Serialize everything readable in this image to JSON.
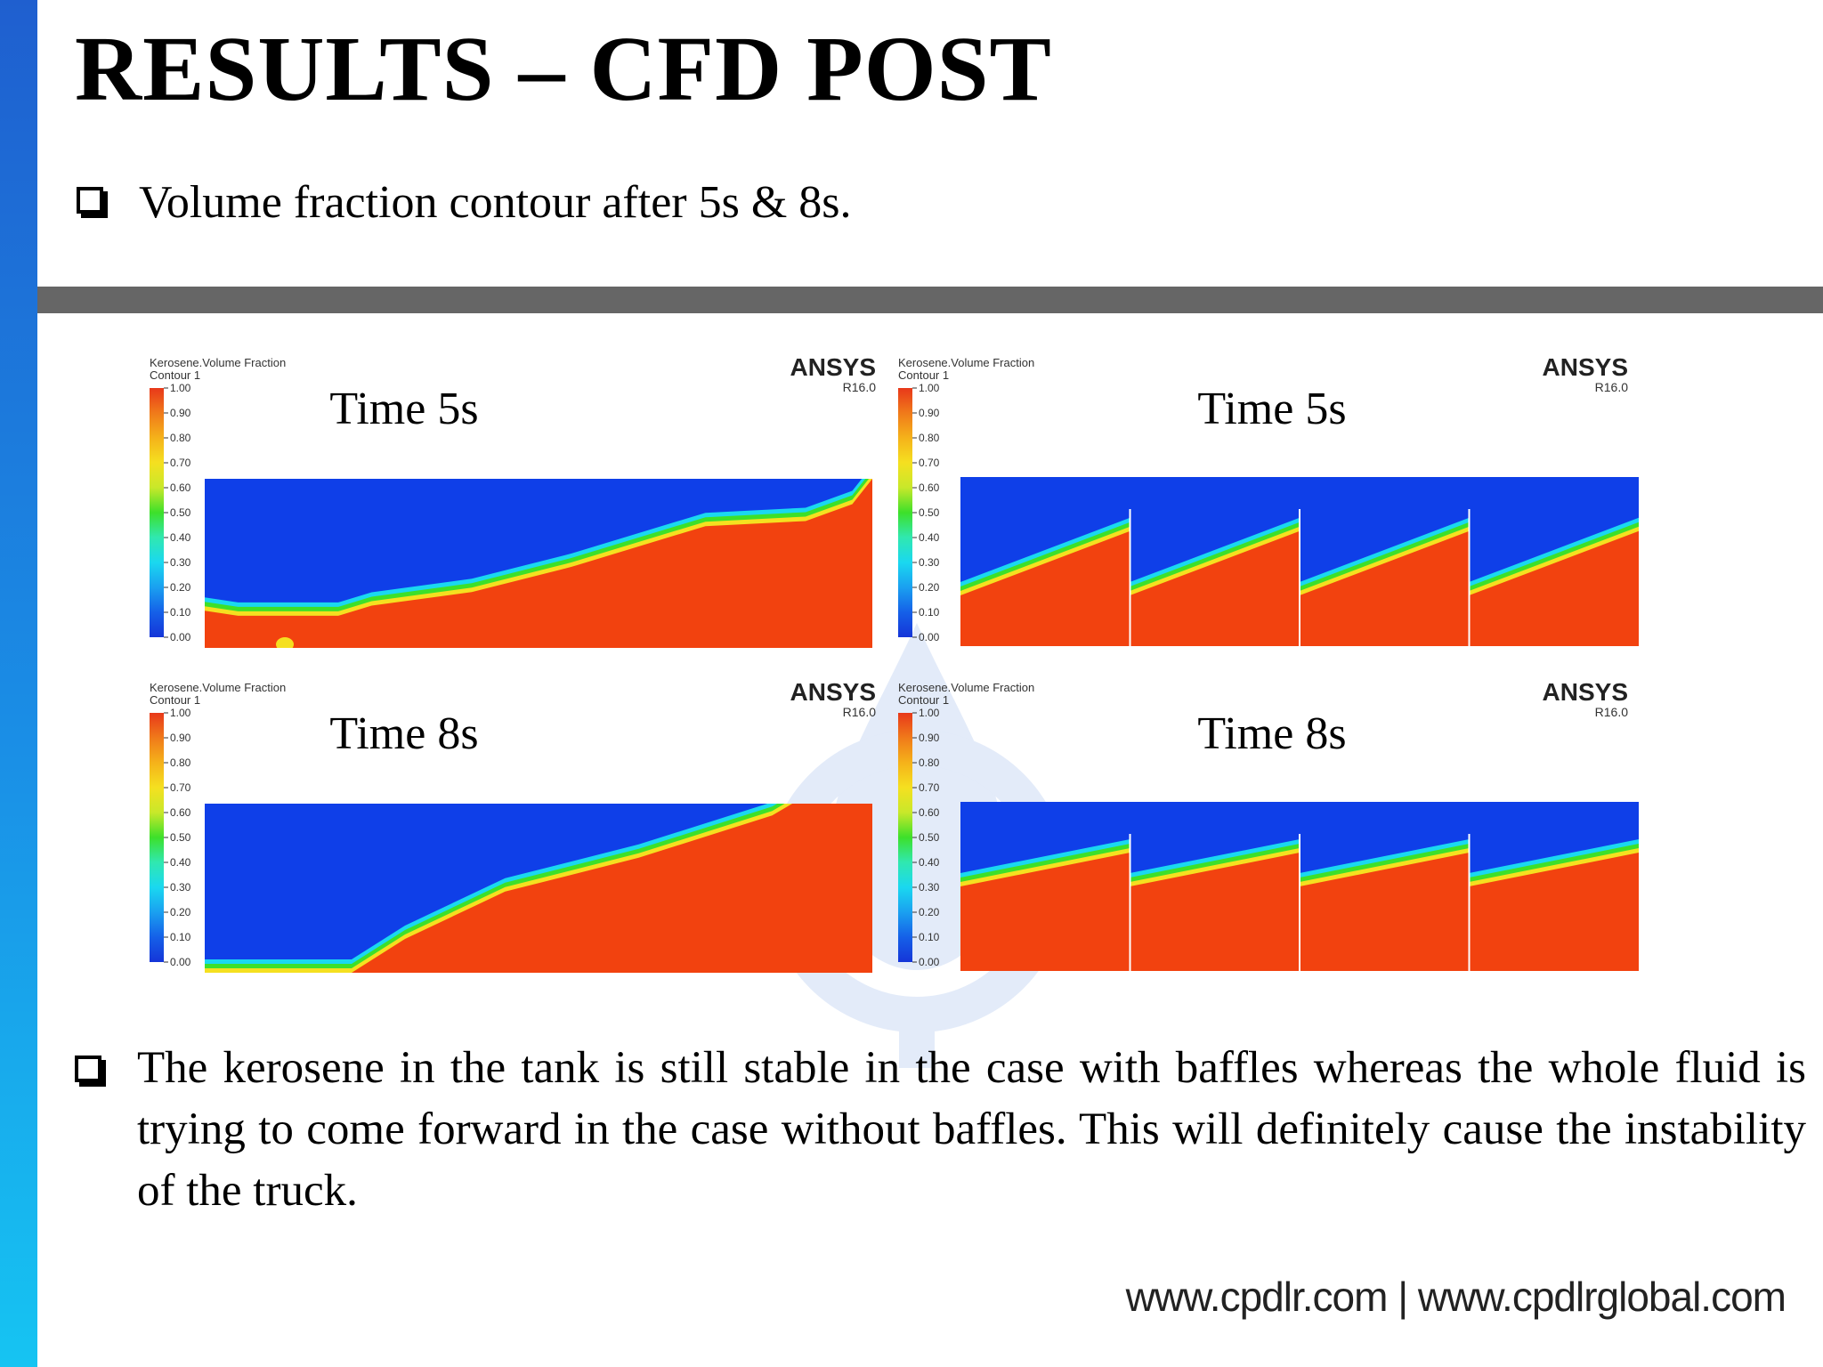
{
  "slide": {
    "title": "RESULTS – CFD POST",
    "bullet_1": "Volume fraction contour after 5s & 8s.",
    "bullet_2": "The kerosene in the tank is still stable in the case with baffles whereas the whole fluid is trying to come forward in the case without baffles. This will definitely cause the instability of the truck.",
    "footer": "www.cpdlr.com | www.cpdlrglobal.com"
  },
  "contours": {
    "legend_title": "Kerosene.Volume Fraction",
    "legend_subtitle": "Contour 1",
    "legend_ticks": [
      "1.00",
      "0.90",
      "0.80",
      "0.70",
      "0.60",
      "0.50",
      "0.40",
      "0.30",
      "0.20",
      "0.10",
      "0.00"
    ],
    "brand": "ANSYS",
    "version": "R16.0",
    "panels": [
      {
        "time_label": "Time 5s",
        "baffles": false
      },
      {
        "time_label": "Time 5s",
        "baffles": true
      },
      {
        "time_label": "Time 8s",
        "baffles": false
      },
      {
        "time_label": "Time 8s",
        "baffles": true
      }
    ]
  },
  "colors": {
    "liquid": "#f2420f",
    "air": "#0f3fe8",
    "interface_band": [
      "#f2420f",
      "#f5e020",
      "#3de02a",
      "#1ad8f0",
      "#0f3fe8"
    ],
    "left_bar": "#1a8fe6",
    "rule": "#666666"
  }
}
